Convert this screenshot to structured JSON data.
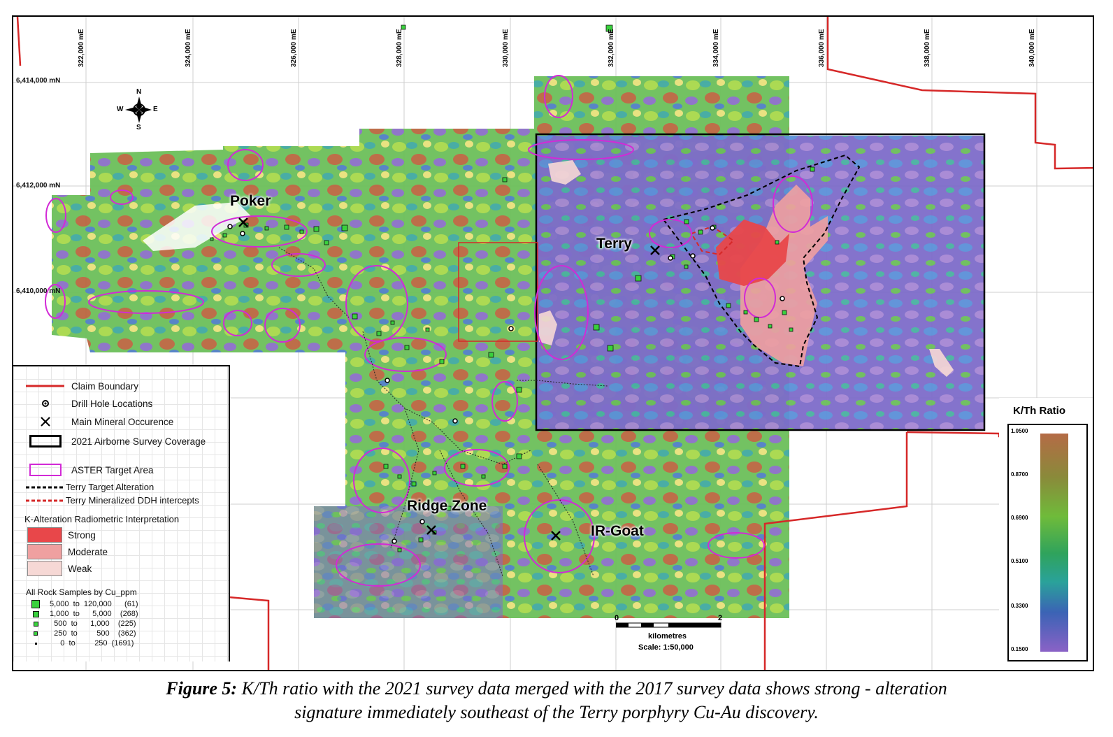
{
  "easting_labels": [
    "322,000 mE",
    "324,000 mE",
    "326,000 mE",
    "328,000 mE",
    "330,000 mE",
    "332,000 mE",
    "334,000 mE",
    "336,000 mE",
    "338,000 mE",
    "340,000 mE"
  ],
  "northing_labels": [
    "6,414,000 mN",
    "6,412,000 mN",
    "6,410,000 mN"
  ],
  "compass": {
    "n": "N",
    "s": "S",
    "e": "E",
    "w": "W"
  },
  "area_labels": {
    "poker": "Poker",
    "terry": "Terry",
    "ridge_zone": "Ridge Zone",
    "ir_goat": "IR-Goat"
  },
  "legend": {
    "claim_boundary": "Claim Boundary",
    "drill_holes": "Drill Hole Locations",
    "main_mineral": "Main Mineral Occurence",
    "survey_coverage": "2021 Airborne Survey Coverage",
    "aster": "ASTER Target Area",
    "terry_alteration": "Terry Target Alteration",
    "terry_ddh": "Terry Mineralized DDH intercepts",
    "k_alteration_title": "K-Alteration Radiometric Interpretation",
    "strong": "Strong",
    "moderate": "Moderate",
    "weak": "Weak",
    "rock_samples_title": "All Rock Samples by Cu_ppm",
    "samples": [
      {
        "text": "5,000  to  120,000      (61)"
      },
      {
        "text": "1,000  to      5,000    (268)"
      },
      {
        "text": "  500  to      1,000    (225)"
      },
      {
        "text": "  250  to         500    (362)"
      },
      {
        "text": "     0  to         250  (1691)"
      }
    ],
    "colors": {
      "claim": "#d62828",
      "aster": "#d22ad6",
      "strong": "#e8474a",
      "moderate": "#efa0a0",
      "weak": "#f6d8d5",
      "sample": "#39d13d"
    }
  },
  "scale": {
    "zero": "0",
    "two": "2",
    "unit": "kilometres",
    "ratio": "Scale: 1:50,000"
  },
  "ratio": {
    "title": "K/Th Ratio",
    "ticks": [
      "1.0500",
      "0.8700",
      "0.6900",
      "0.5100",
      "0.3300",
      "0.1500"
    ]
  },
  "caption": {
    "bold": "Figure 5:",
    "line1": " K/Th ratio with the 2021 survey data merged with the 2017 survey data shows strong - alteration",
    "line2": "signature immediately southeast of the Terry porphyry Cu-Au discovery."
  }
}
